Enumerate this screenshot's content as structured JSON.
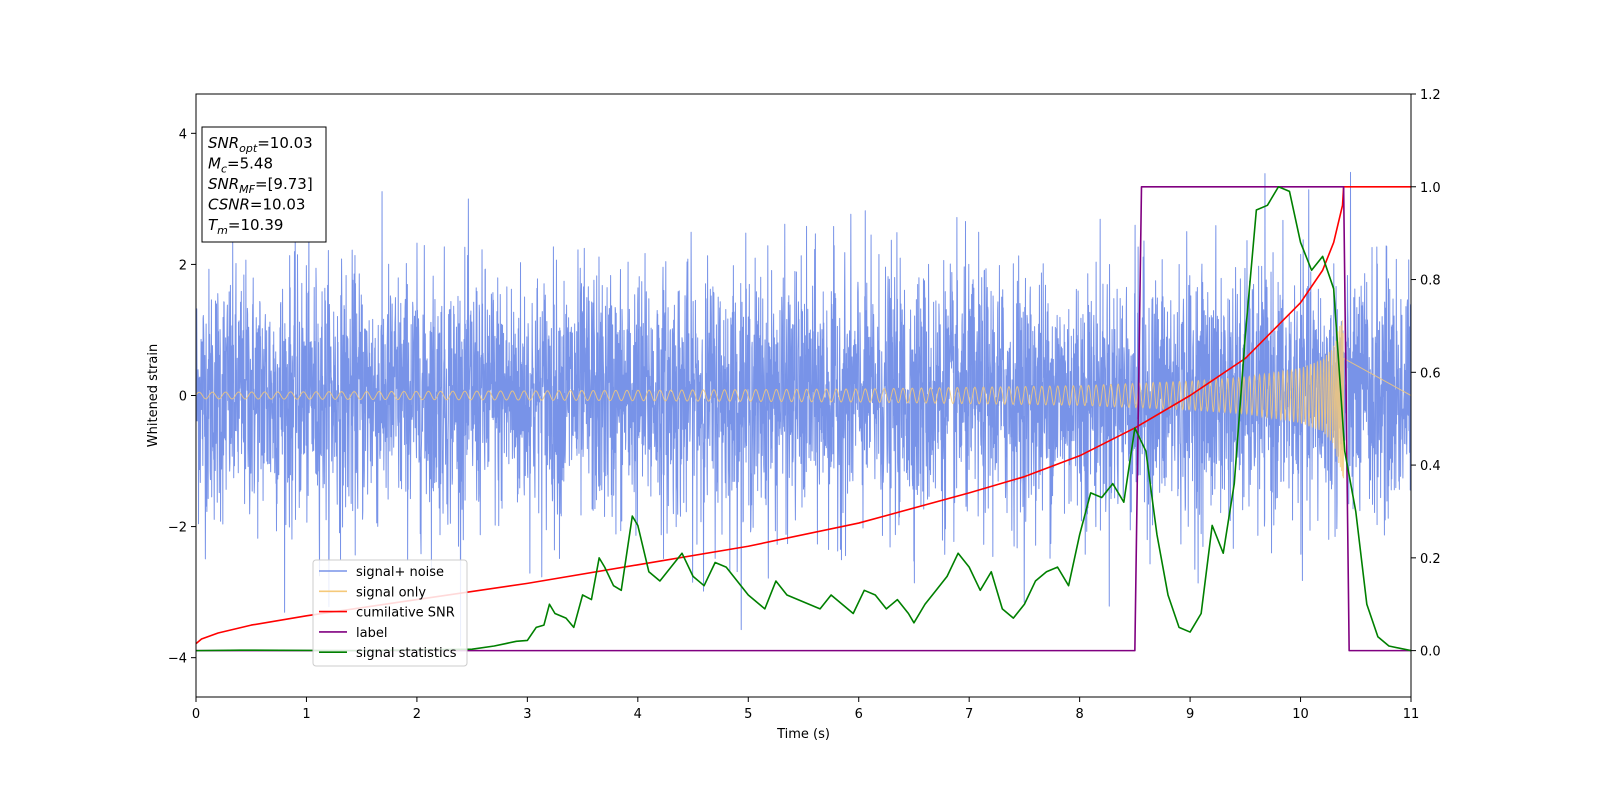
{
  "chart_data": {
    "type": "line",
    "xlabel": "Time (s)",
    "ylabel_left": "Whitened strain",
    "xlim": [
      0,
      11
    ],
    "ylim_left": [
      -4.6,
      4.6
    ],
    "ylim_right": [
      -0.1,
      1.2
    ],
    "x_ticks": [
      "0",
      "1",
      "2",
      "3",
      "4",
      "5",
      "6",
      "7",
      "8",
      "9",
      "10",
      "11"
    ],
    "y_left_ticks": [
      {
        "value": -4,
        "label": "−4"
      },
      {
        "value": -2,
        "label": "−2"
      },
      {
        "value": 0,
        "label": "0"
      },
      {
        "value": 2,
        "label": "2"
      },
      {
        "value": 4,
        "label": "4"
      }
    ],
    "y_right_ticks": [
      "0.0",
      "0.2",
      "0.4",
      "0.6",
      "0.8",
      "1.0",
      "1.2"
    ],
    "grid": false,
    "legend_position": "lower-left",
    "info_box": {
      "lines": [
        {
          "sym": "SNR",
          "sub": "opt",
          "val": "=10.03"
        },
        {
          "sym": "M",
          "sub": "c",
          "val": "=5.48"
        },
        {
          "sym": "SNR",
          "sub": "MF",
          "val": "=[9.73]"
        },
        {
          "sym": "CSNR",
          "sub": "",
          "val": "=10.03"
        },
        {
          "sym": "T",
          "sub": "m",
          "val": "=10.39"
        }
      ]
    },
    "series": [
      {
        "name": "signal+ noise",
        "axis": "left",
        "color": "#7893e8",
        "style": "noise",
        "x_range": [
          0,
          11
        ],
        "approx_std": 0.95,
        "peak_min": -4.15,
        "peak_max": 3.55
      },
      {
        "name": "signal only",
        "axis": "left",
        "color": "#f5c97a",
        "style": "chirp",
        "x_range": [
          0,
          10.39
        ],
        "envelope": [
          [
            0,
            0.05
          ],
          [
            3,
            0.07
          ],
          [
            6,
            0.1
          ],
          [
            8,
            0.15
          ],
          [
            9,
            0.22
          ],
          [
            9.5,
            0.28
          ],
          [
            10,
            0.42
          ],
          [
            10.2,
            0.55
          ],
          [
            10.3,
            0.75
          ],
          [
            10.39,
            1.3
          ]
        ]
      },
      {
        "name": "cumilative SNR",
        "axis": "right",
        "color": "#ff0000",
        "points": [
          [
            0,
            0.015
          ],
          [
            0.05,
            0.025
          ],
          [
            0.2,
            0.038
          ],
          [
            0.5,
            0.055
          ],
          [
            1,
            0.075
          ],
          [
            2,
            0.11
          ],
          [
            3,
            0.145
          ],
          [
            4,
            0.185
          ],
          [
            5,
            0.225
          ],
          [
            6,
            0.275
          ],
          [
            7,
            0.34
          ],
          [
            7.5,
            0.375
          ],
          [
            8,
            0.42
          ],
          [
            8.5,
            0.48
          ],
          [
            9,
            0.55
          ],
          [
            9.5,
            0.63
          ],
          [
            10,
            0.75
          ],
          [
            10.2,
            0.82
          ],
          [
            10.3,
            0.88
          ],
          [
            10.38,
            0.96
          ],
          [
            10.39,
            1.0
          ],
          [
            11,
            1.0
          ]
        ]
      },
      {
        "name": "label",
        "axis": "right",
        "color": "#800080",
        "points": [
          [
            0,
            0
          ],
          [
            8.5,
            0
          ],
          [
            8.56,
            1.0
          ],
          [
            10.39,
            1.0
          ],
          [
            10.44,
            0
          ],
          [
            11,
            0
          ]
        ]
      },
      {
        "name": "signal statistics",
        "axis": "right",
        "color": "#008000",
        "points": [
          [
            0,
            0.0
          ],
          [
            0.4,
            0.001
          ],
          [
            1.5,
            0.0
          ],
          [
            2.5,
            0.003
          ],
          [
            2.7,
            0.01
          ],
          [
            2.8,
            0.015
          ],
          [
            2.9,
            0.02
          ],
          [
            3.0,
            0.022
          ],
          [
            3.08,
            0.05
          ],
          [
            3.15,
            0.055
          ],
          [
            3.2,
            0.1
          ],
          [
            3.25,
            0.08
          ],
          [
            3.35,
            0.07
          ],
          [
            3.42,
            0.05
          ],
          [
            3.5,
            0.12
          ],
          [
            3.58,
            0.11
          ],
          [
            3.65,
            0.2
          ],
          [
            3.7,
            0.18
          ],
          [
            3.78,
            0.14
          ],
          [
            3.85,
            0.13
          ],
          [
            3.95,
            0.29
          ],
          [
            4.0,
            0.27
          ],
          [
            4.1,
            0.17
          ],
          [
            4.2,
            0.15
          ],
          [
            4.3,
            0.18
          ],
          [
            4.4,
            0.21
          ],
          [
            4.5,
            0.16
          ],
          [
            4.6,
            0.14
          ],
          [
            4.7,
            0.19
          ],
          [
            4.8,
            0.18
          ],
          [
            5.0,
            0.12
          ],
          [
            5.1,
            0.1
          ],
          [
            5.15,
            0.09
          ],
          [
            5.25,
            0.15
          ],
          [
            5.35,
            0.12
          ],
          [
            5.45,
            0.11
          ],
          [
            5.55,
            0.1
          ],
          [
            5.65,
            0.09
          ],
          [
            5.75,
            0.12
          ],
          [
            5.85,
            0.1
          ],
          [
            5.95,
            0.08
          ],
          [
            6.05,
            0.13
          ],
          [
            6.15,
            0.12
          ],
          [
            6.25,
            0.09
          ],
          [
            6.35,
            0.11
          ],
          [
            6.45,
            0.08
          ],
          [
            6.5,
            0.06
          ],
          [
            6.6,
            0.1
          ],
          [
            6.7,
            0.13
          ],
          [
            6.8,
            0.16
          ],
          [
            6.9,
            0.21
          ],
          [
            7.0,
            0.18
          ],
          [
            7.1,
            0.13
          ],
          [
            7.2,
            0.17
          ],
          [
            7.3,
            0.09
          ],
          [
            7.4,
            0.07
          ],
          [
            7.5,
            0.1
          ],
          [
            7.6,
            0.15
          ],
          [
            7.7,
            0.17
          ],
          [
            7.8,
            0.18
          ],
          [
            7.9,
            0.14
          ],
          [
            8.0,
            0.25
          ],
          [
            8.1,
            0.34
          ],
          [
            8.2,
            0.33
          ],
          [
            8.3,
            0.36
          ],
          [
            8.4,
            0.32
          ],
          [
            8.5,
            0.48
          ],
          [
            8.6,
            0.43
          ],
          [
            8.7,
            0.25
          ],
          [
            8.8,
            0.12
          ],
          [
            8.9,
            0.05
          ],
          [
            9.0,
            0.04
          ],
          [
            9.1,
            0.08
          ],
          [
            9.2,
            0.27
          ],
          [
            9.3,
            0.21
          ],
          [
            9.4,
            0.36
          ],
          [
            9.5,
            0.68
          ],
          [
            9.6,
            0.95
          ],
          [
            9.7,
            0.96
          ],
          [
            9.8,
            1.0
          ],
          [
            9.9,
            0.99
          ],
          [
            10.0,
            0.88
          ],
          [
            10.1,
            0.82
          ],
          [
            10.2,
            0.85
          ],
          [
            10.3,
            0.78
          ],
          [
            10.4,
            0.43
          ],
          [
            10.5,
            0.3
          ],
          [
            10.6,
            0.1
          ],
          [
            10.7,
            0.03
          ],
          [
            10.8,
            0.01
          ],
          [
            11.0,
            0.0
          ]
        ]
      }
    ]
  }
}
